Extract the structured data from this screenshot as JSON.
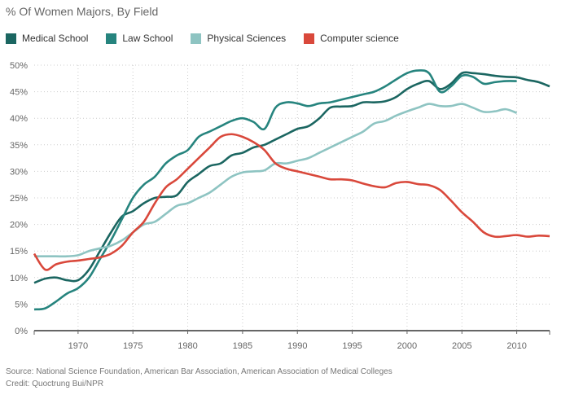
{
  "chart_data": {
    "type": "line",
    "title": "% Of Women Majors, By Field",
    "xlabel": "",
    "ylabel": "",
    "xlim": [
      1966,
      2013
    ],
    "ylim": [
      0,
      50
    ],
    "x_ticks": [
      1970,
      1975,
      1980,
      1985,
      1990,
      1995,
      2000,
      2005,
      2010
    ],
    "y_ticks": [
      "0%",
      "5%",
      "10%",
      "15%",
      "20%",
      "25%",
      "30%",
      "35%",
      "40%",
      "45%",
      "50%"
    ],
    "grid": true,
    "legend_position": "top-left",
    "series": [
      {
        "name": "Medical School",
        "color": "#1b6661",
        "start": 1966,
        "values": [
          9,
          9.8,
          10,
          9.5,
          9.5,
          11.5,
          15,
          18.5,
          21.5,
          22.5,
          24,
          25,
          25.2,
          25.5,
          28,
          29.5,
          31,
          31.5,
          33,
          33.5,
          34.5,
          35,
          36,
          37,
          38,
          38.5,
          40,
          42,
          42.2,
          42.3,
          43,
          43,
          43.2,
          44,
          45.5,
          46.5,
          47,
          45.5,
          46.5,
          48.5,
          48.5,
          48.3,
          48,
          47.8,
          47.7,
          47.2,
          46.8,
          46
        ]
      },
      {
        "name": "Law School",
        "color": "#26847e",
        "start": 1966,
        "values": [
          4,
          4.2,
          5.5,
          7,
          8,
          10,
          13.5,
          17,
          21,
          25,
          27.5,
          29,
          31.5,
          33,
          34,
          36.5,
          37.5,
          38.5,
          39.5,
          40,
          39.3,
          38,
          42,
          43,
          42.8,
          42.3,
          42.8,
          43,
          43.5,
          44,
          44.5,
          45,
          46,
          47.3,
          48.5,
          49,
          48.5,
          45,
          46,
          48,
          47.8,
          46.5,
          46.8,
          47,
          47
        ]
      },
      {
        "name": "Physical Sciences",
        "color": "#8ec4c2",
        "start": 1966,
        "values": [
          14,
          14,
          14,
          14,
          14.2,
          15,
          15.5,
          16,
          17,
          18.5,
          20,
          20.5,
          22,
          23.5,
          24,
          25,
          26,
          27.5,
          29,
          29.8,
          30,
          30.2,
          31.5,
          31.5,
          32,
          32.5,
          33.5,
          34.5,
          35.5,
          36.5,
          37.5,
          39,
          39.5,
          40.5,
          41.3,
          42,
          42.7,
          42.3,
          42.3,
          42.7,
          42,
          41.2,
          41.3,
          41.7,
          41
        ]
      },
      {
        "name": "Computer science",
        "color": "#d9483b",
        "start": 1966,
        "values": [
          14.5,
          11.5,
          12.5,
          13,
          13.2,
          13.5,
          13.8,
          14.5,
          16,
          18.5,
          20.5,
          24,
          27,
          28.5,
          30.5,
          32.5,
          34.5,
          36.5,
          37,
          36.5,
          35.5,
          34,
          31.5,
          30.5,
          30,
          29.5,
          29,
          28.5,
          28.5,
          28.3,
          27.7,
          27.2,
          27,
          27.8,
          28,
          27.6,
          27.4,
          26.5,
          24.5,
          22.3,
          20.5,
          18.5,
          17.7,
          17.8,
          18,
          17.7,
          17.9,
          17.8
        ]
      }
    ]
  },
  "source": "Source: National Science Foundation, American Bar Association, American Association of Medical Colleges",
  "credit": "Credit: Quoctrung Bui/NPR"
}
